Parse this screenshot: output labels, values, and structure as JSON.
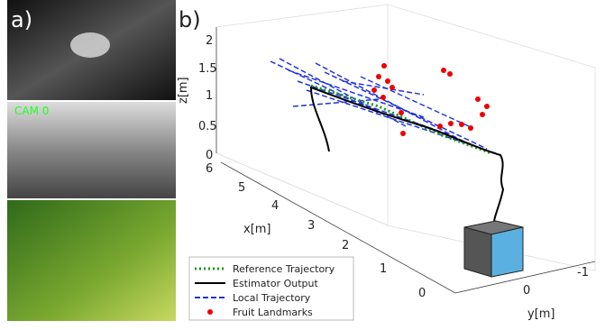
{
  "panel_a": {
    "label": "a)",
    "camera_label": "CAM 0"
  },
  "panel_b": {
    "label": "b)",
    "z_axis": {
      "label": "z[m]",
      "ticks": [
        "2",
        "1.5",
        "1",
        "0.5",
        "0"
      ]
    },
    "x_axis": {
      "label": "x[m]",
      "ticks": [
        "6",
        "5",
        "4",
        "3",
        "2",
        "1",
        "0"
      ]
    },
    "y_axis": {
      "label": "y[m]",
      "ticks": [
        "0",
        "-1"
      ]
    },
    "legend": [
      "Reference Trajectory",
      "Estimator Output",
      "Local Trajectory",
      "Fruit Landmarks"
    ]
  }
}
